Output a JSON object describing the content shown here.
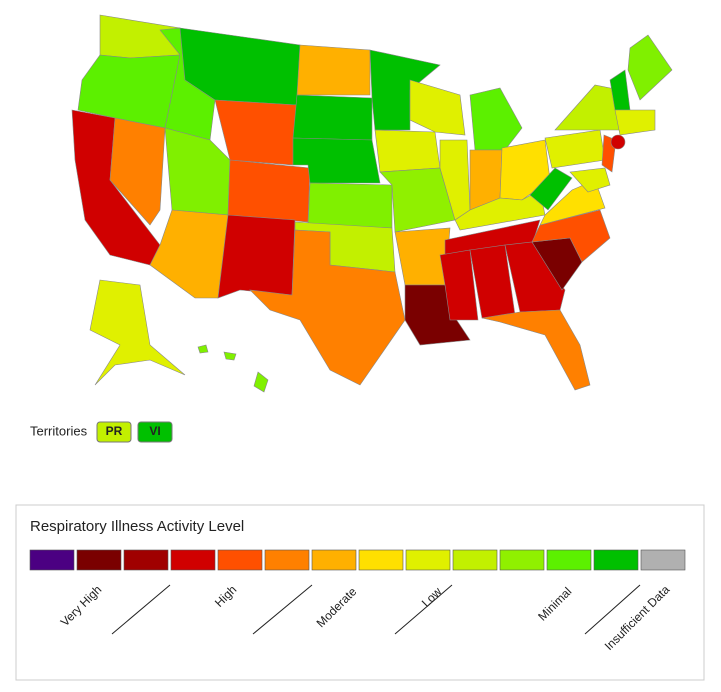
{
  "territories": {
    "label": "Territories",
    "items": [
      {
        "label": "PR",
        "color": "#c2f000"
      },
      {
        "label": "VI",
        "color": "#00c000"
      }
    ]
  },
  "legend": {
    "title": "Respiratory Illness Activity Level",
    "swatches": [
      "#4b0082",
      "#7a0000",
      "#a00000",
      "#d00000",
      "#ff5000",
      "#ff8000",
      "#ffb000",
      "#ffe000",
      "#e0f000",
      "#c2f000",
      "#90f000",
      "#5cf000",
      "#00c000",
      "#b0b0b0"
    ],
    "labels": [
      "Very High",
      "High",
      "Moderate",
      "Low",
      "Minimal",
      "Insufficient Data"
    ]
  }
}
